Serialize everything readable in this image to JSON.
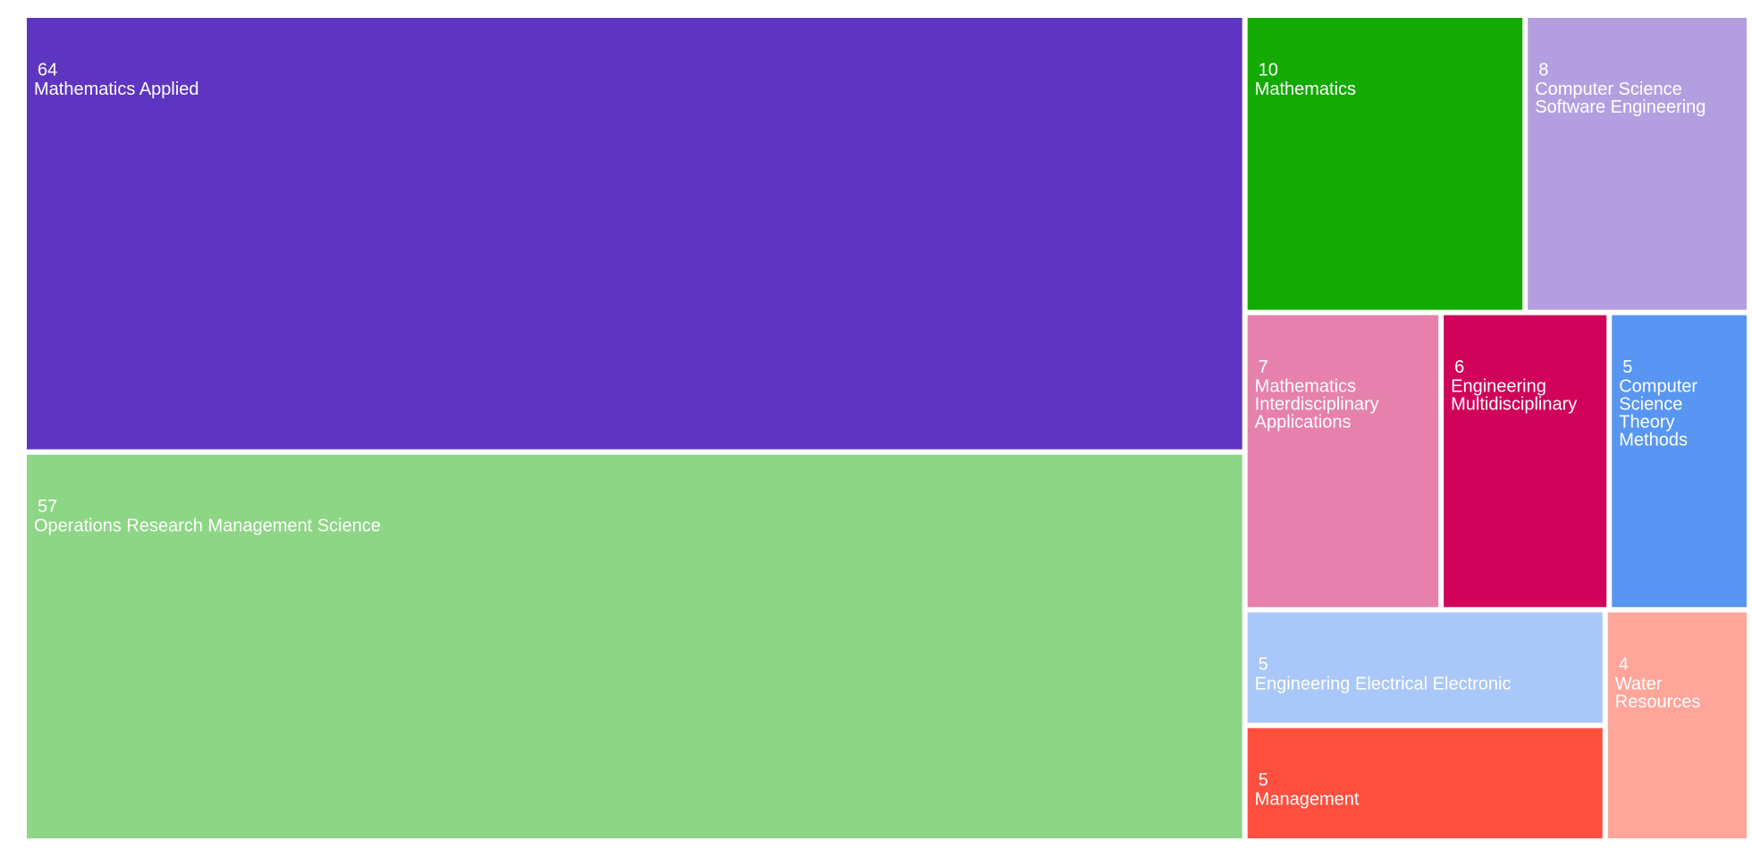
{
  "chart_data": {
    "type": "treemap",
    "categories": [
      "Mathematics Applied",
      "Operations Research Management Science",
      "Mathematics",
      "Computer Science Software Engineering",
      "Mathematics Interdisciplinary Applications",
      "Engineering Multidisciplinary",
      "Computer Science Theory Methods",
      "Engineering Electrical Electronic",
      "Management",
      "Water Resources"
    ],
    "values": [
      64,
      57,
      10,
      8,
      7,
      6,
      5,
      5,
      5,
      4
    ],
    "colors": [
      "#5e35c0",
      "#8dd685",
      "#13aa04",
      "#b39fe0",
      "#e680ac",
      "#d0025a",
      "#5996f4",
      "#a9c7f8",
      "#ff4f3f",
      "#ffa59a"
    ]
  }
}
